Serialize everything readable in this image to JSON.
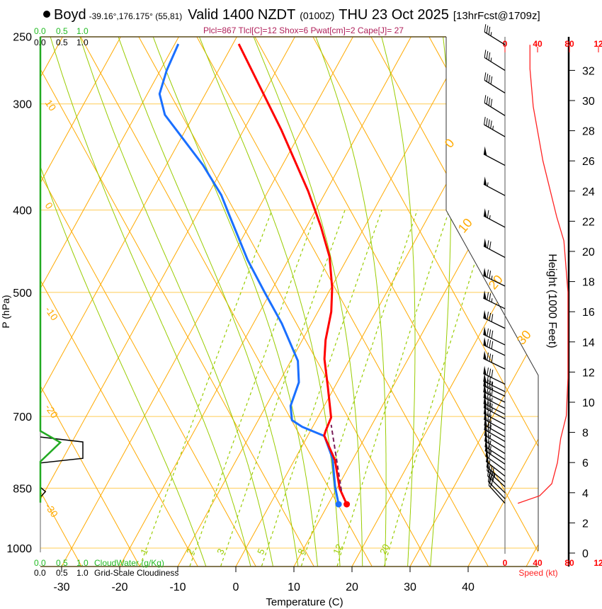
{
  "header": {
    "station": "Boyd",
    "coords": "-39.16°,176.175° (55,81)",
    "valid": "Valid 1400 NZDT",
    "utc": "(0100Z)",
    "date": "THU 23 Oct 2025",
    "forecast": "[13hrFcst@1709z]",
    "indices": "Plcl=867 Tlcl[C]=12 Shox=6 Pwat[cm]=2 Cape[J]= 27"
  },
  "colors": {
    "temperature": "#ff0000",
    "dewpoint": "#1a6fff",
    "parcel": "#7a1f5a",
    "isotherm": "#ffaa00",
    "moist_adiabat": "#99cc00",
    "cloud_water": "#22aa22",
    "indices_text": "#b0205a",
    "wind_speed": "#ff2222"
  },
  "chart_data": {
    "type": "skew-t",
    "pressure_axis": {
      "label": "P (hPa)",
      "ticks": [
        "250",
        "300",
        "400",
        "500",
        "700",
        "850",
        "1000"
      ],
      "range": [
        1050,
        250
      ]
    },
    "temperature_axis": {
      "label": "Temperature (C)",
      "ticks": [
        "-30",
        "-20",
        "-10",
        "0",
        "10",
        "20",
        "30",
        "40"
      ]
    },
    "isotherm_labels_left": [
      "10",
      "0",
      "-10",
      "-20",
      "-30"
    ],
    "isotherm_labels_right": [
      "0",
      "10",
      "20",
      "30"
    ],
    "mixing_ratio_labels": [
      "1",
      "2",
      "3",
      "5",
      "8",
      "12",
      "20"
    ],
    "mixing_ratios_gkg": [
      1,
      2,
      3,
      5,
      8,
      12,
      20
    ],
    "moist_adiabats_T1000": [
      -8,
      0,
      4,
      8.5,
      12,
      16,
      20,
      24,
      28,
      32
    ],
    "temperature": [
      [
        888,
        13.2
      ],
      [
        851,
        10.5
      ],
      [
        788,
        7.0
      ],
      [
        737,
        2.8
      ],
      [
        727,
        2.6
      ],
      [
        702,
        2.3
      ],
      [
        647,
        -1.1
      ],
      [
        599,
        -4.4
      ],
      [
        569,
        -6.0
      ],
      [
        527,
        -7.7
      ],
      [
        494,
        -9.8
      ],
      [
        454,
        -13.2
      ],
      [
        418,
        -17.6
      ],
      [
        380,
        -23.1
      ],
      [
        322,
        -33.5
      ],
      [
        255,
        -49.0
      ]
    ],
    "dewpoint": [
      [
        888,
        11.8
      ],
      [
        846,
        9.5
      ],
      [
        784,
        6.4
      ],
      [
        738,
        2.9
      ],
      [
        720,
        -1.8
      ],
      [
        707,
        -4.2
      ],
      [
        680,
        -5.8
      ],
      [
        638,
        -6.6
      ],
      [
        602,
        -8.8
      ],
      [
        544,
        -15.1
      ],
      [
        500,
        -21.0
      ],
      [
        458,
        -27.0
      ],
      [
        403,
        -34.8
      ],
      [
        384,
        -37.7
      ],
      [
        354,
        -43.7
      ],
      [
        309,
        -55.0
      ],
      [
        292,
        -57.9
      ],
      [
        274,
        -58.9
      ],
      [
        255,
        -59.4
      ]
    ],
    "parcel": [
      [
        856,
        11.0
      ],
      [
        788,
        7.3
      ],
      [
        716,
        3.0
      ]
    ],
    "cloud": {
      "cloud_water_label": "CloudWater (g/Kg)",
      "cloudiness_label": "Grid-Scale Cloudiness",
      "scale_ticks": [
        "0.0",
        "0.5",
        "1.0"
      ],
      "cloud_water": [
        [
          250,
          0
        ],
        [
          728,
          0
        ],
        [
          751,
          0.47
        ],
        [
          791,
          0
        ],
        [
          884,
          0
        ]
      ],
      "cloudiness": [
        [
          740,
          0
        ],
        [
          750,
          1.0
        ],
        [
          784,
          1.0
        ],
        [
          794,
          0
        ],
        [
          848,
          0
        ],
        [
          858,
          0.12
        ],
        [
          871,
          0
        ]
      ]
    },
    "wind": {
      "speed_label": "Speed (kt)",
      "speed_ticks": [
        "0",
        "40",
        "80",
        "12"
      ],
      "speed_profile": [
        [
          3.3,
          16
        ],
        [
          3.8,
          43
        ],
        [
          4.6,
          58
        ],
        [
          6.0,
          65
        ],
        [
          7.6,
          69
        ],
        [
          9.1,
          76
        ],
        [
          11.6,
          78
        ],
        [
          16.3,
          78
        ],
        [
          17.3,
          78
        ],
        [
          20.7,
          73
        ],
        [
          22.3,
          64
        ],
        [
          26.0,
          47
        ],
        [
          29.6,
          35
        ],
        [
          32.1,
          31
        ],
        [
          33.7,
          31
        ]
      ],
      "barbs": [
        [
          33.7,
          35,
          302
        ],
        [
          32.0,
          35,
          302
        ],
        [
          30.5,
          40,
          302
        ],
        [
          29.0,
          40,
          302
        ],
        [
          27.6,
          45,
          300
        ],
        [
          25.7,
          50,
          298
        ],
        [
          23.7,
          55,
          298
        ],
        [
          21.6,
          65,
          298
        ],
        [
          19.6,
          70,
          298
        ],
        [
          17.7,
          75,
          296
        ],
        [
          16.2,
          75,
          296
        ],
        [
          14.9,
          80,
          296
        ],
        [
          13.8,
          80,
          296
        ],
        [
          13.1,
          80,
          296
        ],
        [
          12.2,
          80,
          296
        ],
        [
          11.2,
          80,
          296
        ],
        [
          10.7,
          75,
          296
        ],
        [
          10.4,
          78,
          296
        ],
        [
          10.0,
          78,
          296
        ],
        [
          9.6,
          76,
          297
        ],
        [
          9.2,
          75,
          297
        ],
        [
          8.9,
          74,
          298
        ],
        [
          8.5,
          72,
          298
        ],
        [
          8.1,
          70,
          299
        ],
        [
          7.7,
          69,
          300
        ],
        [
          7.4,
          68,
          300
        ],
        [
          7.0,
          67,
          301
        ],
        [
          6.6,
          66,
          302
        ],
        [
          6.2,
          65,
          303
        ],
        [
          5.9,
          63,
          304
        ],
        [
          5.5,
          60,
          306
        ],
        [
          5.1,
          57,
          308
        ],
        [
          4.7,
          52,
          310
        ],
        [
          4.4,
          46,
          312
        ],
        [
          4.0,
          38,
          314
        ],
        [
          3.6,
          28,
          316
        ],
        [
          3.3,
          16,
          318
        ]
      ]
    },
    "height_axis": {
      "label": "Height (1000 Feet)",
      "ticks": [
        "0",
        "2",
        "4",
        "6",
        "8",
        "10",
        "12",
        "14",
        "16",
        "18",
        "20",
        "22",
        "24",
        "26",
        "28",
        "30",
        "32"
      ]
    }
  }
}
